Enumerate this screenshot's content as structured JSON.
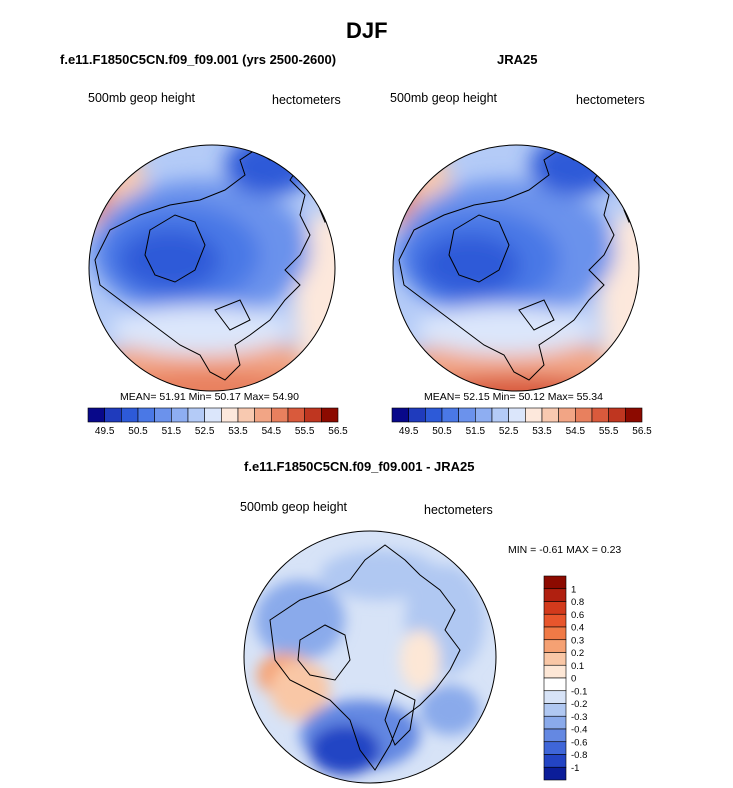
{
  "chart_data": [
    {
      "type": "heatmap",
      "projection": "north-polar-stereographic",
      "title": "f.e11.F1850C5CN.f09_f09.001 (yrs 2500-2600)",
      "left_label": "500mb geop height",
      "right_label": "hectometers",
      "stats": {
        "mean_label": "MEAN=",
        "mean": "51.91",
        "min_label": "Min=",
        "min": "50.17",
        "max_label": "Max=",
        "max": "54.90"
      },
      "colorbar": {
        "colors": [
          "#08088a",
          "#1f3bbd",
          "#2d5ad8",
          "#4a78e6",
          "#6b92ec",
          "#8eaef2",
          "#b4cbf7",
          "#dbe6fb",
          "#fde8dc",
          "#f8c9b0",
          "#f2a585",
          "#e8805e",
          "#d95a3c",
          "#bf3620",
          "#8c0a00"
        ],
        "tick_labels": [
          "49.5",
          "50.5",
          "51.5",
          "52.5",
          "53.5",
          "54.5",
          "55.5",
          "56.5"
        ]
      }
    },
    {
      "type": "heatmap",
      "projection": "north-polar-stereographic",
      "title": "JRA25",
      "left_label": "500mb geop height",
      "right_label": "hectometers",
      "stats": {
        "mean_label": "MEAN=",
        "mean": "52.15",
        "min_label": "Min=",
        "min": "50.12",
        "max_label": "Max=",
        "max": "55.34"
      },
      "colorbar": {
        "colors": [
          "#08088a",
          "#1f3bbd",
          "#2d5ad8",
          "#4a78e6",
          "#6b92ec",
          "#8eaef2",
          "#b4cbf7",
          "#dbe6fb",
          "#fde8dc",
          "#f8c9b0",
          "#f2a585",
          "#e8805e",
          "#d95a3c",
          "#bf3620",
          "#8c0a00"
        ],
        "tick_labels": [
          "49.5",
          "50.5",
          "51.5",
          "52.5",
          "53.5",
          "54.5",
          "55.5",
          "56.5"
        ]
      }
    },
    {
      "type": "heatmap",
      "projection": "north-polar-stereographic",
      "title": "f.e11.F1850C5CN.f09_f09.001 - JRA25",
      "left_label": "500mb geop height",
      "right_label": "hectometers",
      "stats": {
        "min_label": "MIN =",
        "min": "-0.61",
        "max_label": "MAX =",
        "max": "0.23"
      },
      "colorbar": {
        "orientation": "vertical",
        "colors": [
          "#8c0a00",
          "#b02010",
          "#d23a1c",
          "#e8562c",
          "#f07a46",
          "#f5a173",
          "#f9c7a6",
          "#fde7d6",
          "#ffffff",
          "#d7e3f7",
          "#b0c8f2",
          "#8aaaeb",
          "#6488e2",
          "#3f66d8",
          "#2344c4",
          "#0b1d99"
        ],
        "tick_labels": [
          "1",
          "0.8",
          "0.6",
          "0.4",
          "0.3",
          "0.2",
          "0.1",
          "0",
          "-0.1",
          "-0.2",
          "-0.3",
          "-0.4",
          "-0.6",
          "-0.8",
          "-1"
        ]
      }
    }
  ],
  "page": {
    "title": "DJF"
  }
}
